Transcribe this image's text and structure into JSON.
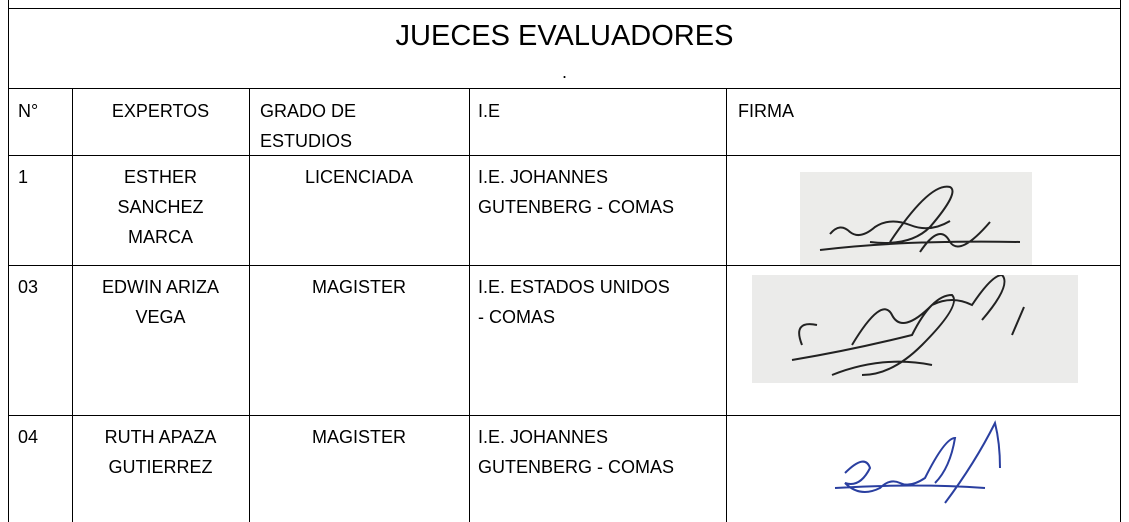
{
  "title": "JUECES EVALUADORES",
  "subtitle": ".",
  "table": {
    "header": [
      "N°",
      "EXPERTOS",
      "GRADO DE ESTUDIOS",
      "I.E",
      "FIRMA"
    ],
    "rows": [
      [
        "1",
        "ESTHER SANCHEZ MARCA",
        "LICENCIADA",
        "I.E. JOHANNES GUTENBERG - COMAS"
      ],
      [
        "03",
        "EDWIN ARIZA VEGA",
        "MAGISTER",
        "I.E. ESTADOS UNIDOS - COMAS"
      ],
      [
        "04",
        "RUTH APAZA GUTIERREZ",
        "MAGISTER",
        "I.E. JOHANNES GUTENBERG - COMAS"
      ]
    ]
  }
}
